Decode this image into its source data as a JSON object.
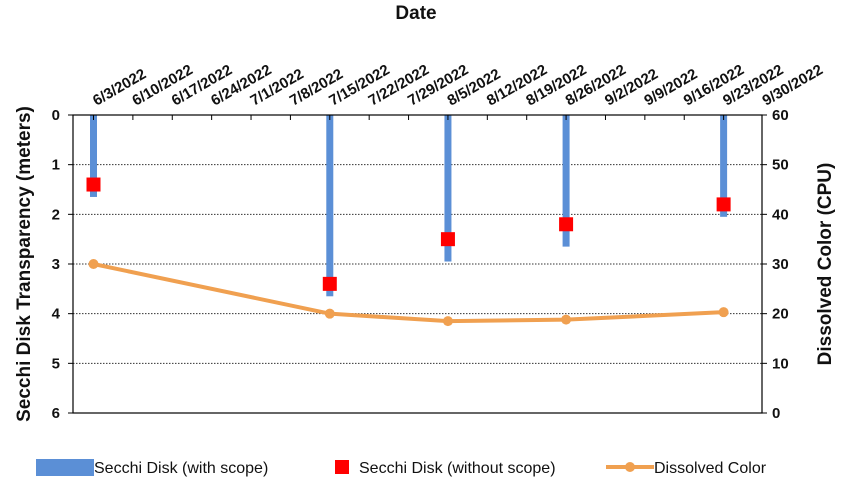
{
  "chart_data": {
    "type": "bar",
    "title_visible": "Date",
    "x_axis": {
      "label": "Date",
      "position": "top",
      "tick_labels": [
        "6/3/2022",
        "6/10/2022",
        "6/17/2022",
        "6/24/2022",
        "7/1/2022",
        "7/8/2022",
        "7/15/2022",
        "7/22/2022",
        "7/29/2022",
        "8/5/2022",
        "8/12/2022",
        "8/19/2022",
        "8/26/2022",
        "9/2/2022",
        "9/9/2022",
        "9/16/2022",
        "9/23/2022",
        "9/30/2022"
      ]
    },
    "y_left": {
      "label": "Secchi Disk Transparency (meters)",
      "range": [
        0,
        6
      ],
      "inverted": true,
      "ticks": [
        0,
        1,
        2,
        3,
        4,
        5,
        6
      ]
    },
    "y_right": {
      "label": "Dissolved Color (CPU)",
      "range": [
        0,
        60
      ],
      "ticks": [
        0,
        10,
        20,
        30,
        40,
        50,
        60
      ]
    },
    "grid": "horizontal dotted",
    "series": [
      {
        "name": "Secchi Disk (with scope)",
        "kind": "bar",
        "axis": "left",
        "color": "#5B8FD6",
        "points": [
          {
            "date": "6/3/2022",
            "value": 1.65
          },
          {
            "date": "7/15/2022",
            "value": 3.65
          },
          {
            "date": "8/5/2022",
            "value": 2.95
          },
          {
            "date": "8/26/2022",
            "value": 2.65
          },
          {
            "date": "9/23/2022",
            "value": 2.05
          }
        ]
      },
      {
        "name": "Secchi Disk (without scope)",
        "kind": "marker",
        "axis": "left",
        "color": "#FF0000",
        "points": [
          {
            "date": "6/3/2022",
            "value": 1.4
          },
          {
            "date": "7/15/2022",
            "value": 3.4
          },
          {
            "date": "8/5/2022",
            "value": 2.5
          },
          {
            "date": "8/26/2022",
            "value": 2.2
          },
          {
            "date": "9/23/2022",
            "value": 1.8
          }
        ]
      },
      {
        "name": "Dissolved Color",
        "kind": "line",
        "axis": "right",
        "color": "#F0A050",
        "points": [
          {
            "date": "6/3/2022",
            "value": 30
          },
          {
            "date": "7/15/2022",
            "value": 20
          },
          {
            "date": "8/5/2022",
            "value": 18.5
          },
          {
            "date": "8/26/2022",
            "value": 18.8
          },
          {
            "date": "9/23/2022",
            "value": 20.3
          }
        ]
      }
    ],
    "legend": {
      "placement": "bottom",
      "entries": [
        "Secchi Disk (with scope)",
        "Secchi Disk (without scope)",
        "Dissolved Color"
      ]
    }
  }
}
